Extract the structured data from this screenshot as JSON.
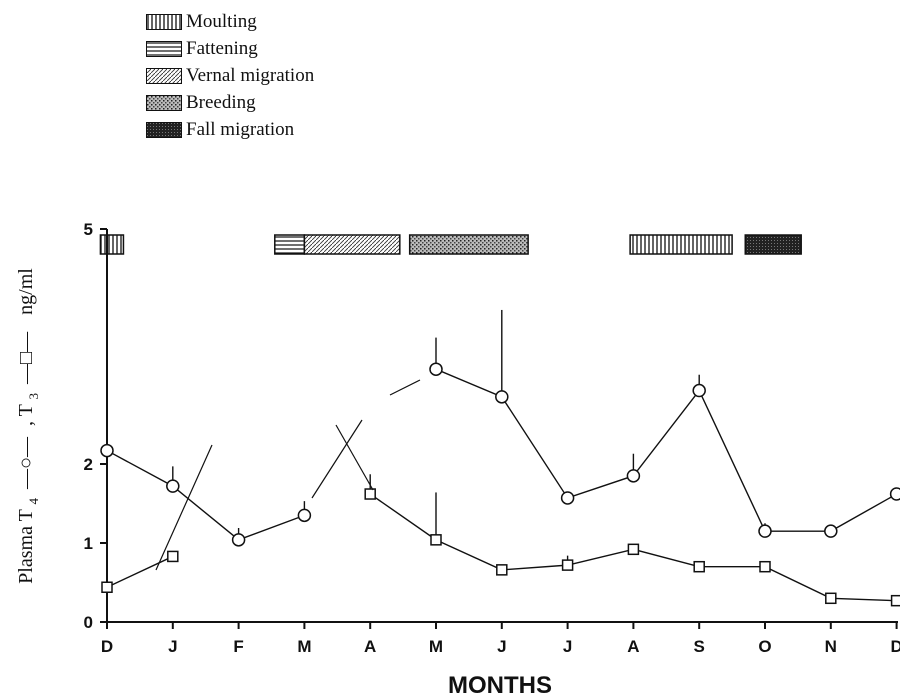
{
  "legend": [
    {
      "label": "Moulting",
      "pattern": "moult"
    },
    {
      "label": "Fattening",
      "pattern": "fat"
    },
    {
      "label": "Vernal migration",
      "pattern": "vernal"
    },
    {
      "label": "Breeding",
      "pattern": "breed"
    },
    {
      "label": "Fall migration",
      "pattern": "fall"
    }
  ],
  "chart_data": {
    "type": "line",
    "title": "",
    "xlabel": "MONTHS",
    "ylabel_parts": [
      "Plasma T",
      "4",
      ", T",
      "3",
      "ng/ml"
    ],
    "categories": [
      "D",
      "J",
      "F",
      "M",
      "A",
      "M",
      "J",
      "J",
      "A",
      "S",
      "O",
      "N",
      "D"
    ],
    "yticks": [
      "0",
      "1",
      "2",
      "5"
    ],
    "ylim": [
      0,
      5
    ],
    "series": [
      {
        "symbol": "circle",
        "values": [
          2.17,
          1.72,
          1.04,
          1.35,
          null,
          3.2,
          2.85,
          1.57,
          1.85,
          2.93,
          1.15,
          1.15,
          1.62
        ],
        "errors": [
          0,
          0.25,
          0.15,
          0.18,
          0,
          0.4,
          1.1,
          0,
          0.28,
          0.2,
          0.1,
          0,
          0
        ]
      },
      {
        "symbol": "square",
        "values": [
          0.44,
          0.83,
          null,
          null,
          1.62,
          1.04,
          0.66,
          0.72,
          0.92,
          0.7,
          0.7,
          0.3,
          0.27
        ],
        "errors": [
          0,
          0,
          0,
          0,
          0.25,
          0.6,
          0,
          0.12,
          0,
          0,
          0,
          0,
          0
        ]
      }
    ],
    "phases": [
      {
        "pattern": "moult",
        "start": -0.1,
        "end": 0.25
      },
      {
        "pattern": "fat",
        "start": 2.55,
        "end": 3.0
      },
      {
        "pattern": "vernal",
        "start": 3.0,
        "end": 4.45
      },
      {
        "pattern": "breed",
        "start": 4.6,
        "end": 6.4
      },
      {
        "pattern": "moult",
        "start": 7.95,
        "end": 9.5
      },
      {
        "pattern": "fall",
        "start": 9.7,
        "end": 10.55
      }
    ]
  }
}
